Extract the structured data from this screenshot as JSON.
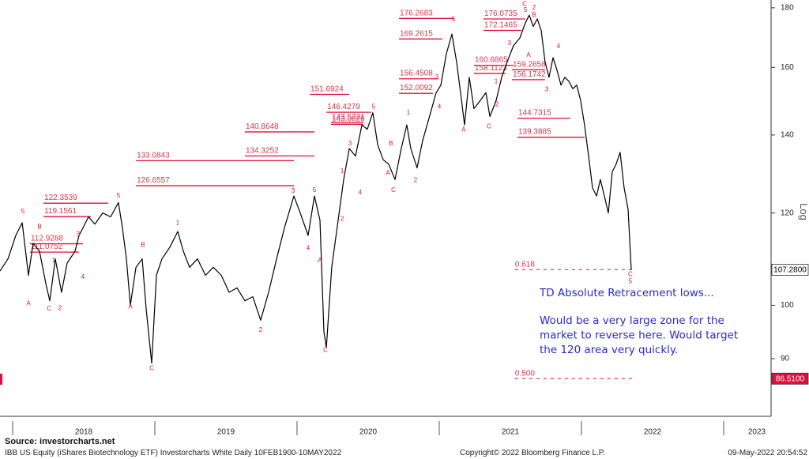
{
  "chart_data": {
    "type": "line",
    "log_scale": true,
    "grid": false,
    "color": "#000000",
    "y_label": "Log",
    "xlim": [
      2017.911,
      2023.328
    ],
    "ylim": [
      80.3,
      182.8
    ],
    "xticks": [
      2018,
      2019,
      2020,
      2021,
      2022,
      2023
    ],
    "yticks": [
      90,
      100,
      120,
      140,
      160,
      180
    ],
    "x": [
      2017.911,
      2017.967,
      2018.022,
      2018.067,
      2018.111,
      2018.144,
      2018.189,
      2018.233,
      2018.261,
      2018.3,
      2018.344,
      2018.383,
      2018.439,
      2018.467,
      2018.494,
      2018.533,
      2018.578,
      2018.633,
      2018.689,
      2018.744,
      2018.772,
      2018.8,
      2018.828,
      2018.867,
      2018.911,
      2018.939,
      2018.978,
      2019.011,
      2019.05,
      2019.106,
      2019.161,
      2019.2,
      2019.244,
      2019.3,
      2019.356,
      2019.411,
      2019.467,
      2019.522,
      2019.578,
      2019.633,
      2019.689,
      2019.744,
      2019.8,
      2019.856,
      2019.911,
      2019.978,
      2020.022,
      2020.078,
      2020.122,
      2020.161,
      2020.189,
      2020.206,
      2020.244,
      2020.289,
      2020.328,
      2020.367,
      2020.411,
      2020.456,
      2020.494,
      2020.533,
      2020.567,
      2020.606,
      2020.644,
      2020.689,
      2020.733,
      2020.772,
      2020.8,
      2020.844,
      2020.883,
      2020.939,
      2020.978,
      2021.011,
      2021.05,
      2021.089,
      2021.122,
      2021.15,
      2021.178,
      2021.211,
      2021.244,
      2021.289,
      2021.328,
      2021.356,
      2021.4,
      2021.439,
      2021.478,
      2021.522,
      2021.567,
      2021.606,
      2021.633,
      2021.661,
      2021.689,
      2021.717,
      2021.744,
      2021.772,
      2021.8,
      2021.828,
      2021.856,
      2021.883,
      2021.911,
      2021.939,
      2021.967,
      2021.994,
      2022.022,
      2022.05,
      2022.078,
      2022.106,
      2022.133,
      2022.161,
      2022.189,
      2022.217,
      2022.244,
      2022.272,
      2022.3,
      2022.328,
      2022.35
    ],
    "values": [
      107.0,
      109.6,
      114.8,
      117.7,
      106.1,
      113.0,
      111.3,
      104.4,
      100.9,
      109.6,
      102.6,
      108.7,
      111.3,
      114.8,
      116.5,
      119.1,
      117.4,
      120.0,
      119.1,
      122.5,
      116.5,
      109.6,
      100.0,
      107.8,
      109.6,
      99.3,
      89.2,
      106.1,
      109.6,
      112.2,
      115.7,
      111.3,
      107.8,
      109.6,
      106.1,
      107.8,
      106.1,
      102.6,
      103.5,
      100.9,
      101.7,
      97.1,
      102.6,
      109.6,
      116.5,
      124.1,
      120.0,
      114.8,
      124.1,
      118.3,
      94.9,
      92.0,
      107.8,
      118.3,
      128.2,
      136.3,
      134.3,
      142.8,
      141.6,
      146.3,
      137.3,
      133.3,
      132.2,
      128.2,
      136.3,
      142.8,
      136.3,
      131.2,
      138.4,
      146.3,
      152.2,
      154.5,
      164.4,
      170.9,
      161.8,
      152.2,
      142.8,
      156.9,
      147.5,
      149.9,
      152.2,
      145.2,
      149.9,
      156.9,
      161.8,
      167.0,
      169.6,
      174.8,
      177.4,
      173.5,
      176.1,
      172.2,
      161.8,
      156.9,
      163.1,
      159.2,
      154.5,
      156.9,
      155.7,
      153.4,
      154.5,
      149.9,
      142.8,
      134.3,
      126.1,
      124.1,
      128.2,
      124.1,
      120.0,
      130.2,
      132.2,
      135.3,
      126.1,
      120.9,
      107.28
    ],
    "levels": [
      {
        "value": 176.2683,
        "x": [
          2020.717,
          2021.106
        ]
      },
      {
        "value": 169.2615,
        "x": [
          2020.717,
          2021.022
        ]
      },
      {
        "value": 176.0735,
        "x": [
          2021.311,
          2021.606
        ]
      },
      {
        "value": 172.1465,
        "x": [
          2021.311,
          2021.578
        ]
      },
      {
        "value": 156.4508,
        "x": [
          2020.717,
          2020.994
        ]
      },
      {
        "value": 152.0092,
        "x": [
          2020.717,
          2020.956
        ]
      },
      {
        "value": 151.6924,
        "x": [
          2020.089,
          2020.367
        ]
      },
      {
        "value": 146.4279,
        "x": [
          2020.206,
          2020.522
        ]
      },
      {
        "value": 143.0026,
        "x": [
          2020.239,
          2020.467
        ]
      },
      {
        "value": 143.5221,
        "x": [
          2020.239,
          2020.467
        ]
      },
      {
        "value": 140.8648,
        "x": [
          2019.633,
          2020.122
        ]
      },
      {
        "value": 134.3252,
        "x": [
          2019.633,
          2020.122
        ]
      },
      {
        "value": 133.0843,
        "x": [
          2018.867,
          2019.978
        ]
      },
      {
        "value": 126.6557,
        "x": [
          2018.867,
          2019.978
        ]
      },
      {
        "value": 122.3539,
        "x": [
          2018.217,
          2018.672
        ]
      },
      {
        "value": 119.1561,
        "x": [
          2018.217,
          2018.55
        ]
      },
      {
        "value": 112.9288,
        "x": [
          2018.122,
          2018.494
        ]
      },
      {
        "value": 111.0752,
        "x": [
          2018.122,
          2018.467
        ]
      },
      {
        "value": 160.6865,
        "x": [
          2021.244,
          2021.522
        ]
      },
      {
        "value": 158.1123,
        "x": [
          2021.244,
          2021.467
        ]
      },
      {
        "value": 159.2658,
        "x": [
          2021.511,
          2021.744
        ]
      },
      {
        "value": 156.1742,
        "x": [
          2021.511,
          2021.744
        ]
      },
      {
        "value": 144.7315,
        "x": [
          2021.55,
          2021.922
        ]
      },
      {
        "value": 139.3885,
        "x": [
          2021.55,
          2022.022
        ]
      }
    ],
    "retracements": [
      {
        "ratio": 0.618,
        "price": 107.3,
        "x": [
          2021.533,
          2022.356
        ]
      },
      {
        "ratio": {
          "value": 0.5,
          "label": "0.500"
        },
        "price": 86.51,
        "x": [
          2021.533,
          2022.356
        ]
      }
    ],
    "price_labels": [
      {
        "value": 107.28,
        "label": "107.2800",
        "fill": "#ffffff",
        "text_color": "#000000"
      },
      {
        "value": 86.51,
        "label": "86.5100",
        "fill": "#e0103a",
        "text_color": "#ffffff"
      }
    ],
    "wave_labels": [
      {
        "label": "5",
        "x": 2018.072,
        "y": 120.3
      },
      {
        "label": "B",
        "x": 2018.189,
        "y": 116.7
      },
      {
        "label": "A",
        "x": 2018.111,
        "y": 100.3
      },
      {
        "label": "C",
        "x": 2018.256,
        "y": 99.3
      },
      {
        "label": "2",
        "x": 2018.333,
        "y": 99.4
      },
      {
        "label": "1",
        "x": 2018.289,
        "y": 109.2
      },
      {
        "label": "3",
        "x": 2018.461,
        "y": 115.1
      },
      {
        "label": "4",
        "x": 2018.494,
        "y": 105.7
      },
      {
        "label": "5",
        "x": 2018.744,
        "y": 124.1
      },
      {
        "label": "A",
        "x": 2018.828,
        "y": 99.7
      },
      {
        "label": "B",
        "x": 2018.917,
        "y": 112.6
      },
      {
        "label": "C",
        "x": 2018.978,
        "y": 88.3
      },
      {
        "label": "1",
        "x": 2019.161,
        "y": 117.6
      },
      {
        "label": "2",
        "x": 2019.744,
        "y": 95.2
      },
      {
        "label": "3",
        "x": 2019.972,
        "y": 125.3
      },
      {
        "label": "5",
        "x": 2020.122,
        "y": 125.5
      },
      {
        "label": "4",
        "x": 2020.078,
        "y": 111.9
      },
      {
        "label": "A",
        "x": 2020.161,
        "y": 109.2
      },
      {
        "label": "C",
        "x": 2020.2,
        "y": 91.5
      },
      {
        "label": "1",
        "x": 2020.317,
        "y": 130.4
      },
      {
        "label": "2",
        "x": 2020.317,
        "y": 118.6
      },
      {
        "label": "3",
        "x": 2020.372,
        "y": 137.6
      },
      {
        "label": "4",
        "x": 2020.444,
        "y": 124.9
      },
      {
        "label": "5",
        "x": 2020.539,
        "y": 148.0
      },
      {
        "label": "B",
        "x": 2020.661,
        "y": 137.6
      },
      {
        "label": "A",
        "x": 2020.639,
        "y": 129.8
      },
      {
        "label": "C",
        "x": 2020.678,
        "y": 125.5
      },
      {
        "label": "2",
        "x": 2020.833,
        "y": 128.0
      },
      {
        "label": "1",
        "x": 2020.783,
        "y": 146.3
      },
      {
        "label": "3",
        "x": 2020.983,
        "y": 156.9
      },
      {
        "label": "4",
        "x": 2021.0,
        "y": 148.0
      },
      {
        "label": "5",
        "x": 2021.1,
        "y": 175.8
      },
      {
        "label": "A",
        "x": 2021.172,
        "y": 141.4
      },
      {
        "label": "1",
        "x": 2021.4,
        "y": 155.5
      },
      {
        "label": "2",
        "x": 2021.406,
        "y": 148.7
      },
      {
        "label": "C",
        "x": 2021.35,
        "y": 142.3
      },
      {
        "label": "3",
        "x": 2021.494,
        "y": 167.8
      },
      {
        "label": "A",
        "x": 2021.628,
        "y": 163.9
      },
      {
        "label": "B",
        "x": 2021.667,
        "y": 177.4
      },
      {
        "label": "5",
        "x": 2021.606,
        "y": 179.2
      },
      {
        "label": "C",
        "x": 2021.6,
        "y": 181.3
      },
      {
        "label": "2",
        "x": 2021.667,
        "y": 180.0
      },
      {
        "label": "4",
        "x": 2021.839,
        "y": 166.7
      },
      {
        "label": "3",
        "x": 2021.756,
        "y": 153.1
      },
      {
        "label": "C",
        "x": 2022.344,
        "y": 106.3
      },
      {
        "label": "5",
        "x": 2022.344,
        "y": 104.8
      }
    ],
    "note": {
      "title": "TD Absolute Retracement lows...",
      "lines": [
        "Would be a very large zone for the",
        "market to reverse here. Would target",
        "the 120 area very quickly."
      ]
    },
    "footer": {
      "source": "Source:  investorcharts.net",
      "description": "IBB US Equity (iShares Biotechnology ETF) Investorcharts White  Daily 10FEB1900-10MAY2022",
      "copyright": "Copyright© 2022 Bloomberg Finance L.P.",
      "timestamp": "09-May-2022 20:54:52"
    }
  }
}
